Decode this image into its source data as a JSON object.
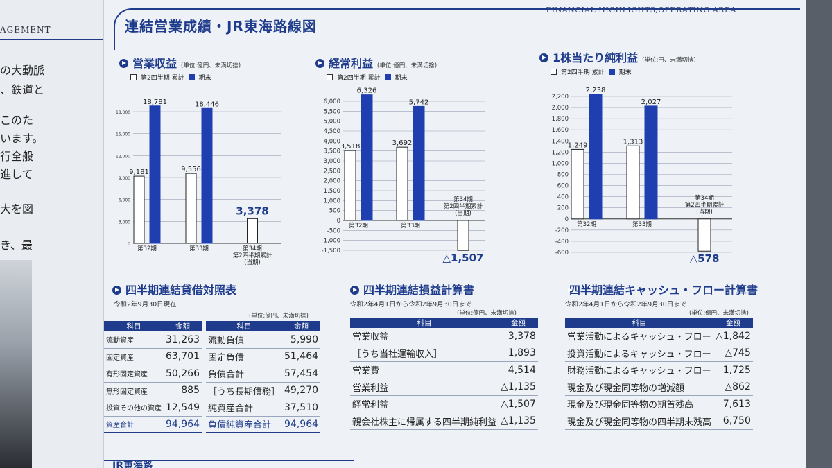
{
  "left_page": {
    "header": "AGEMENT",
    "lines": [
      "の大動脈",
      "、鉄道と",
      "このた",
      "います。",
      "行全般",
      "進して",
      "大を図",
      "き、最"
    ]
  },
  "header": {
    "title": "連結営業成績・JR東海路線図",
    "english_title": "FINANCIAL HIGHLIGHTS,OPERATING AREA"
  },
  "legend": {
    "quarter": "第2四半期 累計",
    "year_end": "期末"
  },
  "chart_data": [
    {
      "type": "bar",
      "title": "営業収益",
      "unit": "(単位:億円、未満切捨)",
      "legend": [
        "第2四半期 累計",
        "期末"
      ],
      "categories": [
        "第32期",
        "第33期",
        "第34期 第2四半期累計 (当期)"
      ],
      "series": [
        {
          "name": "第2四半期 累計",
          "values": [
            9181,
            9556,
            3378
          ]
        },
        {
          "name": "期末",
          "values": [
            18781,
            18446,
            null
          ]
        }
      ],
      "value_labels": [
        "9,181",
        "18,781",
        "9,556",
        "18,446",
        "3,378"
      ],
      "yticks": [
        "0",
        "3,000",
        "6,000",
        "9,000",
        "12,000",
        "15,000",
        "18,000"
      ],
      "ylim": [
        0,
        18000
      ],
      "grid": true
    },
    {
      "type": "bar",
      "title": "経常利益",
      "unit": "(単位:億円、未満切捨)",
      "legend": [
        "第2四半期 累計",
        "期末"
      ],
      "categories": [
        "第32期",
        "第33期",
        "第34期 第2四半期累計 (当期)"
      ],
      "series": [
        {
          "name": "第2四半期 累計",
          "values": [
            3518,
            3692,
            -1507
          ]
        },
        {
          "name": "期末",
          "values": [
            6326,
            5742,
            null
          ]
        }
      ],
      "value_labels": [
        "3,518",
        "6,326",
        "3,692",
        "5,742",
        "△1,507"
      ],
      "yticks": [
        "-1,500",
        "-1,000",
        "-500",
        "0",
        "500",
        "1,000",
        "1,500",
        "2,000",
        "2,500",
        "3,000",
        "3,500",
        "4,000",
        "4,500",
        "5,000",
        "5,500",
        "6,000"
      ],
      "ylim": [
        -1500,
        6000
      ],
      "grid": true
    },
    {
      "type": "bar",
      "title": "1株当たり純利益",
      "unit": "(単位:円、未満切捨)",
      "legend": [
        "第2四半期 累計",
        "期末"
      ],
      "categories": [
        "第32期",
        "第33期",
        "第34期 第2四半期累計 (当期)"
      ],
      "series": [
        {
          "name": "第2四半期 累計",
          "values": [
            1249,
            1313,
            -578
          ]
        },
        {
          "name": "期末",
          "values": [
            2238,
            2027,
            null
          ]
        }
      ],
      "value_labels": [
        "1,249",
        "2,238",
        "1,313",
        "2,027",
        "△578"
      ],
      "yticks": [
        "-600",
        "-400",
        "-200",
        "0",
        "200",
        "400",
        "600",
        "800",
        "1,000",
        "1,200",
        "1,400",
        "1,600",
        "1,800",
        "2,000",
        "2,200"
      ],
      "ylim": [
        -600,
        2200
      ],
      "grid": true
    }
  ],
  "chart_captions": {
    "cat1": "第32期",
    "cat2": "第33期",
    "cat3_line1": "第34期",
    "cat3_line2": "第2四半期累計",
    "cat3_line3": "(当期)"
  },
  "balance_sheet": {
    "title": "四半期連結貸借対照表",
    "date": "令和2年9月30日現在",
    "unit": "(単位:億円、未満切捨)",
    "col_item": "科目",
    "col_amount": "金額",
    "left_rows": [
      {
        "item": "流動資産",
        "amount": "31,263"
      },
      {
        "item": "固定資産",
        "amount": "63,701"
      },
      {
        "item": "有形固定資産",
        "amount": "50,266"
      },
      {
        "item": "無形固定資産",
        "amount": "885"
      },
      {
        "item": "投資その他の資産",
        "amount": "12,549"
      },
      {
        "item": "資産合計",
        "amount": "94,964"
      }
    ],
    "right_rows": [
      {
        "item": "流動負債",
        "amount": "5,990"
      },
      {
        "item": "固定負債",
        "amount": "51,464"
      },
      {
        "item": "負債合計",
        "amount": "57,454"
      },
      {
        "item": "［うち長期債務］",
        "amount": "49,270"
      },
      {
        "item": "純資産合計",
        "amount": "37,510"
      },
      {
        "item": "負債純資産合計",
        "amount": "94,964"
      }
    ]
  },
  "income_statement": {
    "title": "四半期連結損益計算書",
    "period": "令和2年4月1日から令和2年9月30日まで",
    "unit": "(単位:億円、未満切捨)",
    "col_item": "科目",
    "col_amount": "金額",
    "rows": [
      {
        "item": "営業収益",
        "amount": "3,378"
      },
      {
        "item": "［うち当社運輸収入］",
        "amount": "1,893"
      },
      {
        "item": "営業費",
        "amount": "4,514"
      },
      {
        "item": "営業利益",
        "amount": "△1,135"
      },
      {
        "item": "経常利益",
        "amount": "△1,507"
      },
      {
        "item": "親会社株主に帰属する四半期純利益",
        "amount": "△1,135"
      }
    ]
  },
  "cash_flow": {
    "title": "四半期連結キャッシュ・フロー計算書",
    "period": "令和2年4月1日から令和2年9月30日まで",
    "unit": "(単位:億円、未満切捨)",
    "col_item": "科目",
    "col_amount": "金額",
    "rows": [
      {
        "item": "営業活動によるキャッシュ・フロー",
        "amount": "△1,842"
      },
      {
        "item": "投資活動によるキャッシュ・フロー",
        "amount": "△745"
      },
      {
        "item": "財務活動によるキャッシュ・フロー",
        "amount": "1,725"
      },
      {
        "item": "現金及び現金同等物の増減額",
        "amount": "△862"
      },
      {
        "item": "現金及び現金同等物の期首残高",
        "amount": "7,613"
      },
      {
        "item": "現金及び現金同等物の四半期末残高",
        "amount": "6,750"
      }
    ]
  },
  "bottom": {
    "partial_title": "JR東海路"
  },
  "colors": {
    "accent": "#1f3c8c",
    "bar_fill": "#1f3fb0",
    "page": "#eef2f6"
  }
}
